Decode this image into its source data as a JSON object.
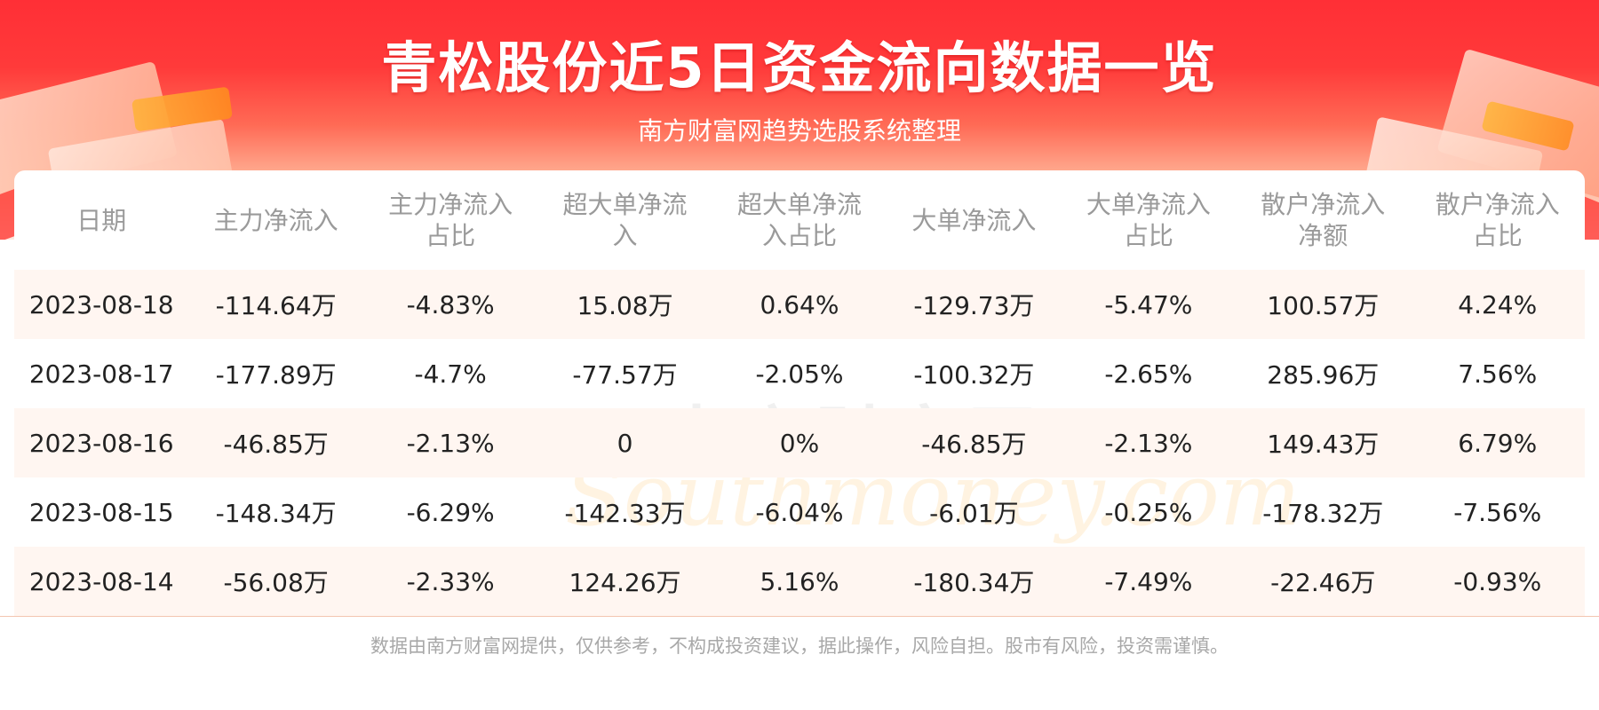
{
  "header": {
    "title": "青松股份近5日资金流向数据一览",
    "subtitle": "南方财富网趋势选股系统整理"
  },
  "watermark": {
    "cn": "南方财富网",
    "en": "Southmoney.com"
  },
  "table": {
    "columns": [
      "日期",
      "主力净流入",
      "主力净流入\n占比",
      "超大单净流\n入",
      "超大单净流\n入占比",
      "大单净流入",
      "大单净流入\n占比",
      "散户净流入\n净额",
      "散户净流入\n占比"
    ],
    "rows": [
      [
        "2023-08-18",
        "-114.64万",
        "-4.83%",
        "15.08万",
        "0.64%",
        "-129.73万",
        "-5.47%",
        "100.57万",
        "4.24%"
      ],
      [
        "2023-08-17",
        "-177.89万",
        "-4.7%",
        "-77.57万",
        "-2.05%",
        "-100.32万",
        "-2.65%",
        "285.96万",
        "7.56%"
      ],
      [
        "2023-08-16",
        "-46.85万",
        "-2.13%",
        "0",
        "0%",
        "-46.85万",
        "-2.13%",
        "149.43万",
        "6.79%"
      ],
      [
        "2023-08-15",
        "-148.34万",
        "-6.29%",
        "-142.33万",
        "-6.04%",
        "-6.01万",
        "-0.25%",
        "-178.32万",
        "-7.56%"
      ],
      [
        "2023-08-14",
        "-56.08万",
        "-2.33%",
        "124.26万",
        "5.16%",
        "-180.34万",
        "-7.49%",
        "-22.46万",
        "-0.93%"
      ]
    ]
  },
  "footer": {
    "disclaimer": "数据由南方财富网提供，仅供参考，不构成投资建议，据此操作，风险自担。股市有风险，投资需谨慎。"
  },
  "colors": {
    "banner_red": "#ff2f36",
    "row_tint": "#fff6f1",
    "header_text": "#9a9a9a",
    "cell_text": "#222222"
  }
}
